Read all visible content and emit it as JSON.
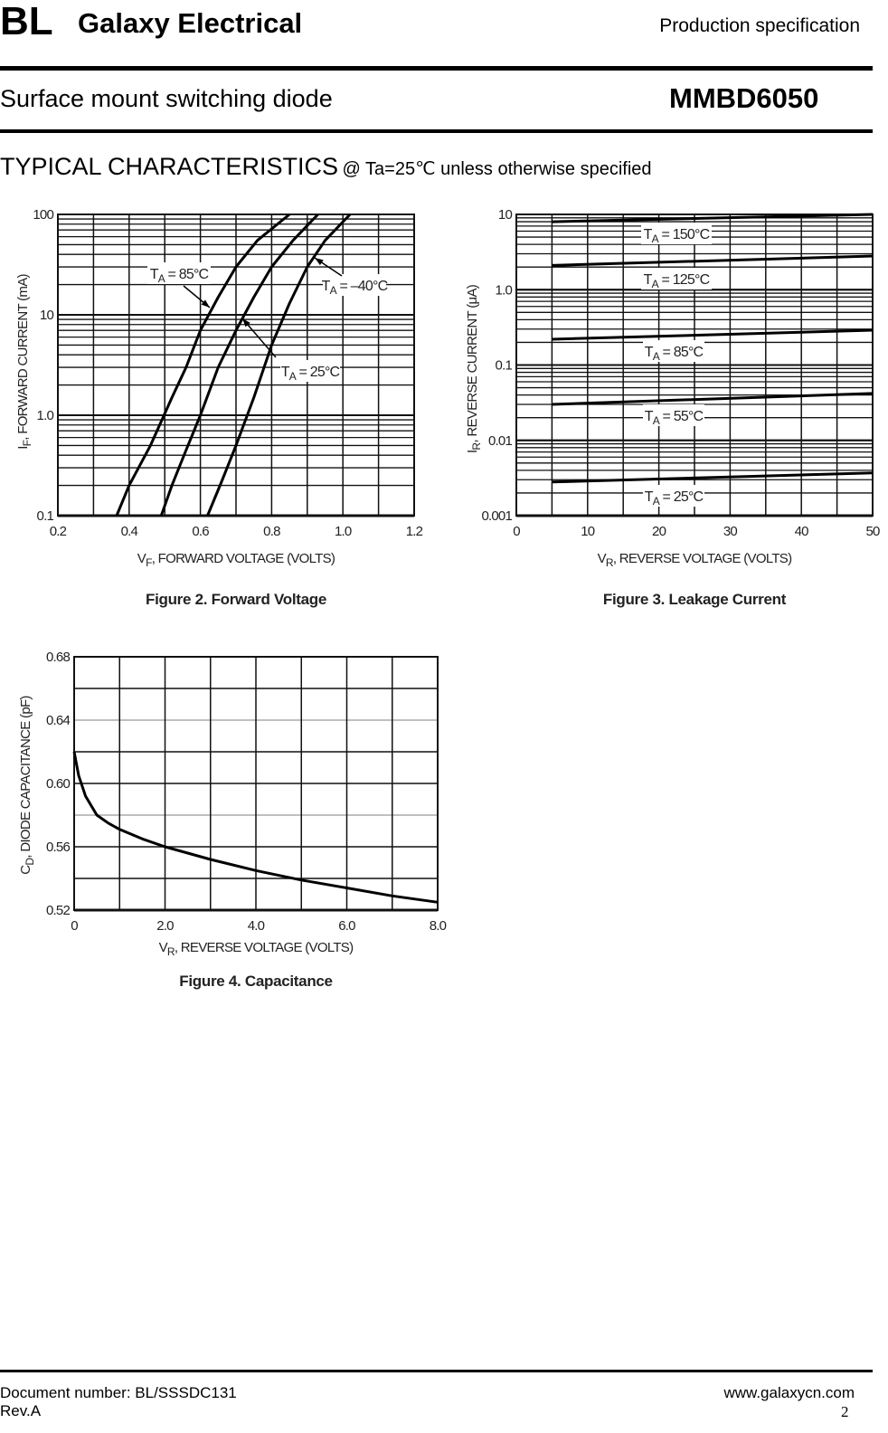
{
  "header": {
    "logo": "BL",
    "company": "Galaxy Electrical",
    "spec": "Production specification",
    "subtitle": "Surface mount switching diode",
    "part": "MMBD6050",
    "section_title": "TYPICAL CHARACTERISTICS",
    "section_note": "@ Ta=25℃ unless otherwise specified"
  },
  "footer": {
    "doc_number": "Document number: BL/SSSDC131",
    "rev": "Rev.A",
    "website": "www.galaxycn.com",
    "page": "2"
  },
  "chart_data": [
    {
      "id": "fig2",
      "type": "line",
      "caption": "Figure 2. Forward Voltage",
      "xlabel_main": "V",
      "xlabel_sub": "F",
      "xlabel_rest": ", FORWARD VOLTAGE (VOLTS)",
      "ylabel_main": "I",
      "ylabel_sub": "F",
      "ylabel_rest": ", FORWARD CURRENT (mA)",
      "xlim": [
        0.2,
        1.2
      ],
      "ylim": [
        0.1,
        100
      ],
      "yscale": "log",
      "grid": true,
      "xticks": [
        "0.2",
        "0.4",
        "0.6",
        "0.8",
        "1.0",
        "1.2"
      ],
      "yticks": [
        "0.1",
        "1.0",
        "10",
        "100"
      ],
      "series": [
        {
          "name": "TA = 85°C",
          "x": [
            0.365,
            0.4,
            0.46,
            0.52,
            0.56,
            0.6,
            0.65,
            0.7,
            0.76,
            0.85
          ],
          "y": [
            0.1,
            0.2,
            0.5,
            1.5,
            3,
            7,
            15,
            30,
            55,
            100
          ]
        },
        {
          "name": "TA = 25°C",
          "x": [
            0.49,
            0.52,
            0.56,
            0.6,
            0.65,
            0.7,
            0.75,
            0.8,
            0.86,
            0.93
          ],
          "y": [
            0.1,
            0.2,
            0.45,
            1,
            3,
            7,
            15,
            30,
            55,
            100
          ]
        },
        {
          "name": "TA = –40°C",
          "x": [
            0.62,
            0.66,
            0.7,
            0.75,
            0.8,
            0.85,
            0.9,
            0.95,
            1.02
          ],
          "y": [
            0.1,
            0.22,
            0.5,
            1.5,
            5,
            13,
            30,
            55,
            100
          ]
        }
      ]
    },
    {
      "id": "fig3",
      "type": "line",
      "caption": "Figure 3. Leakage Current",
      "xlabel_main": "V",
      "xlabel_sub": "R",
      "xlabel_rest": ", REVERSE VOLTAGE (VOLTS)",
      "ylabel_main": "I",
      "ylabel_sub": "R",
      "ylabel_rest": ", REVERSE CURRENT (μA)",
      "xlim": [
        0,
        50
      ],
      "ylim": [
        0.001,
        10
      ],
      "yscale": "log",
      "grid": true,
      "xticks": [
        "0",
        "10",
        "20",
        "30",
        "40",
        "50"
      ],
      "yticks": [
        "0.001",
        "0.01",
        "0.1",
        "1.0",
        "10"
      ],
      "series": [
        {
          "name": "TA = 150°C",
          "x": [
            5,
            50
          ],
          "y": [
            8,
            10
          ]
        },
        {
          "name": "TA = 125°C",
          "x": [
            5,
            50
          ],
          "y": [
            2.1,
            2.8
          ]
        },
        {
          "name": "TA = 85°C",
          "x": [
            5,
            50
          ],
          "y": [
            0.22,
            0.29
          ]
        },
        {
          "name": "TA = 55°C",
          "x": [
            5,
            50
          ],
          "y": [
            0.03,
            0.042
          ]
        },
        {
          "name": "TA = 25°C",
          "x": [
            5,
            50
          ],
          "y": [
            0.0028,
            0.0037
          ]
        }
      ]
    },
    {
      "id": "fig4",
      "type": "line",
      "caption": "Figure 4. Capacitance",
      "xlabel_main": "V",
      "xlabel_sub": "R",
      "xlabel_rest": ", REVERSE VOLTAGE (VOLTS)",
      "ylabel_main": "C",
      "ylabel_sub": "D",
      "ylabel_rest": ", DIODE CAPACITANCE (pF)",
      "xlim": [
        0,
        8
      ],
      "ylim": [
        0.52,
        0.68
      ],
      "yscale": "linear",
      "grid": true,
      "xticks": [
        "0",
        "2.0",
        "4.0",
        "6.0",
        "8.0"
      ],
      "yticks": [
        "0.52",
        "0.56",
        "0.60",
        "0.64",
        "0.68"
      ],
      "series": [
        {
          "x": [
            0,
            0.1,
            0.25,
            0.5,
            0.75,
            1,
            1.5,
            2,
            3,
            4,
            5,
            6,
            7,
            8
          ],
          "y": [
            0.62,
            0.605,
            0.592,
            0.58,
            0.575,
            0.571,
            0.565,
            0.56,
            0.552,
            0.545,
            0.539,
            0.534,
            0.529,
            0.525
          ]
        }
      ]
    }
  ]
}
